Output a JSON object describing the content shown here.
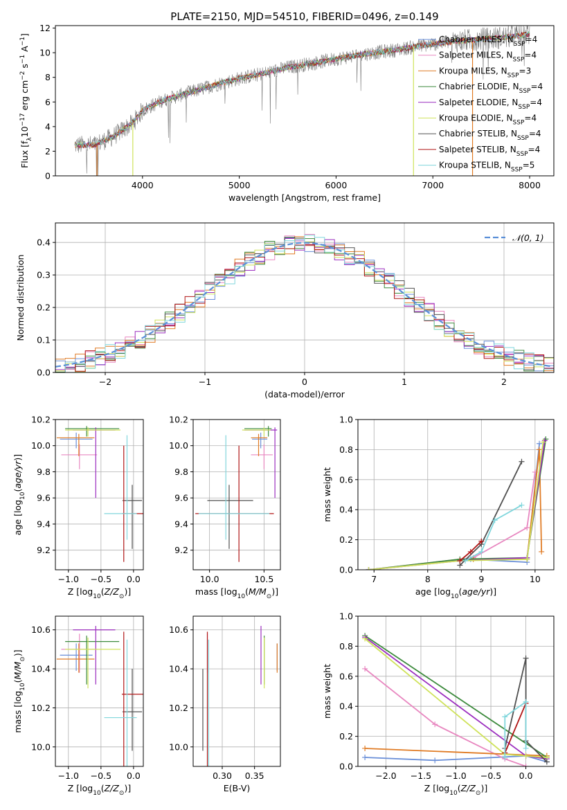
{
  "figure_title": "PLATE=2150, MJD=54510, FIBERID=0496, z=0.149",
  "colors": {
    "Chabrier MILES": "#6a8fd8",
    "Salpeter MILES": "#e887c0",
    "Kroupa MILES": "#e07b24",
    "Chabrier ELODIE": "#3c8a3c",
    "Salpeter ELODIE": "#9b2dbf",
    "Kroupa ELODIE": "#cfe25a",
    "Chabrier STELIB": "#505050",
    "Salpeter STELIB": "#b01515",
    "Kroupa STELIB": "#7fd6dc",
    "data": "#7a7a7a",
    "gaussian": "#5a8fd8"
  },
  "chart_data": [
    {
      "id": "spectrum",
      "type": "line",
      "title": "PLATE=2150, MJD=54510, FIBERID=0496, z=0.149",
      "xlabel": "wavelength [Angstrom, rest frame]",
      "ylabel": "Flux [f_λ 10^-17 erg cm^-2 s^-1 A^-1]",
      "xlim": [
        3100,
        8250
      ],
      "ylim": [
        0,
        12.2
      ],
      "xticks": [
        4000,
        5000,
        6000,
        7000,
        8000
      ],
      "yticks": [
        0,
        2,
        4,
        6,
        8,
        10,
        12
      ],
      "grid": false,
      "legend_position": "top-right",
      "legend": [
        {
          "label": "Chabrier MILES, N",
          "sub": "SSP",
          "tail": "=4",
          "key": "Chabrier MILES"
        },
        {
          "label": "Salpeter MILES, N",
          "sub": "SSP",
          "tail": "=4",
          "key": "Salpeter MILES"
        },
        {
          "label": "Kroupa MILES, N",
          "sub": "SSP",
          "tail": "=3",
          "key": "Kroupa MILES"
        },
        {
          "label": "Chabrier ELODIE, N",
          "sub": "SSP",
          "tail": "=4",
          "key": "Chabrier ELODIE"
        },
        {
          "label": "Salpeter ELODIE, N",
          "sub": "SSP",
          "tail": "=4",
          "key": "Salpeter ELODIE"
        },
        {
          "label": "Kroupa ELODIE, N",
          "sub": "SSP",
          "tail": "=4",
          "key": "Kroupa ELODIE"
        },
        {
          "label": "Chabrier STELIB, N",
          "sub": "SSP",
          "tail": "=4",
          "key": "Chabrier STELIB"
        },
        {
          "label": "Salpeter STELIB, N",
          "sub": "SSP",
          "tail": "=4",
          "key": "Salpeter STELIB"
        },
        {
          "label": "Kroupa STELIB, N",
          "sub": "SSP",
          "tail": "=5",
          "key": "Kroupa STELIB"
        }
      ],
      "continuum": {
        "x": [
          3300,
          3500,
          3700,
          3900,
          4000,
          4200,
          4500,
          4800,
          5000,
          5300,
          5500,
          5800,
          6000,
          6300,
          6600,
          6900,
          7200,
          7500,
          7800,
          8000
        ],
        "y": [
          2.5,
          2.5,
          3.2,
          4.3,
          5.3,
          6.1,
          6.8,
          7.5,
          7.9,
          8.4,
          8.8,
          9.2,
          9.5,
          9.9,
          10.2,
          10.6,
          10.9,
          11.1,
          11.3,
          11.5
        ]
      },
      "model_drop_lines": [
        {
          "x": 3530,
          "key": "Kroupa MILES",
          "from": 2.5,
          "to": 0
        },
        {
          "x": 3900,
          "key": "Kroupa ELODIE",
          "from": 4.3,
          "to": 0
        },
        {
          "x": 6800,
          "key": "Kroupa ELODIE",
          "from": 10.5,
          "to": 0
        },
        {
          "x": 7410,
          "key": "Kroupa MILES",
          "from": 11.0,
          "to": 0
        }
      ]
    },
    {
      "id": "residuals",
      "type": "line",
      "xlabel": "(data-model)/error",
      "ylabel": "Normed distribution",
      "xlim": [
        -2.5,
        2.5
      ],
      "ylim": [
        0,
        0.46
      ],
      "xticks": [
        -2,
        -1,
        0,
        1,
        2
      ],
      "yticks": [
        0.0,
        0.1,
        0.2,
        0.3,
        0.4
      ],
      "grid": true,
      "legend_position": "top-right",
      "legend": [
        {
          "label": "𝒩(0, 1)",
          "key": "gaussian",
          "style": "dashed"
        }
      ],
      "bin_width": 0.1
    },
    {
      "id": "age-vs-Z",
      "type": "scatter",
      "xlabel": "Z [log10(Z/Z⊙)]",
      "ylabel": "age  [log10(age/yr)]",
      "xlim": [
        -1.2,
        0.15
      ],
      "ylim": [
        9.05,
        10.2
      ],
      "xticks": [
        -1.0,
        -0.5,
        0.0
      ],
      "yticks": [
        9.2,
        9.4,
        9.6,
        9.8,
        10.0,
        10.2
      ],
      "grid": true,
      "points": [
        {
          "key": "Chabrier MILES",
          "x": -0.88,
          "y": 10.05,
          "xerr": [
            0.25,
            0.25
          ],
          "yerr": [
            0.07,
            0.05
          ]
        },
        {
          "key": "Salpeter MILES",
          "x": -0.83,
          "y": 9.93,
          "xerr": [
            0.28,
            0.27
          ],
          "yerr": [
            0.11,
            0.08
          ]
        },
        {
          "key": "Kroupa MILES",
          "x": -0.84,
          "y": 10.06,
          "xerr": [
            0.34,
            0.24
          ],
          "yerr": [
            0.14,
            0.03
          ]
        },
        {
          "key": "Chabrier ELODIE",
          "x": -0.72,
          "y": 10.13,
          "xerr": [
            0.33,
            0.5
          ],
          "yerr": [
            0.06,
            0.02
          ]
        },
        {
          "key": "Salpeter ELODIE",
          "x": -0.58,
          "y": 10.12,
          "xerr": [
            0.35,
            0.3
          ],
          "yerr": [
            0.52,
            0.02
          ]
        },
        {
          "key": "Kroupa ELODIE",
          "x": -0.7,
          "y": 10.12,
          "xerr": [
            0.35,
            0.5
          ],
          "yerr": [
            0.05,
            0.02
          ]
        },
        {
          "key": "Chabrier STELIB",
          "x": -0.02,
          "y": 9.58,
          "xerr": [
            0.15,
            0.15
          ],
          "yerr": [
            0.37,
            0.12
          ]
        },
        {
          "key": "Salpeter STELIB",
          "x": -0.15,
          "y": 9.48,
          "xerr": [
            0.03,
            0.3
          ],
          "yerr": [
            0.37,
            0.52
          ]
        },
        {
          "key": "Kroupa STELIB",
          "x": -0.1,
          "y": 9.48,
          "xerr": [
            0.35,
            0.15
          ],
          "yerr": [
            0.2,
            0.6
          ]
        }
      ]
    },
    {
      "id": "age-vs-mass",
      "type": "scatter",
      "xlabel": "mass [log10(M/M⊙)]",
      "ylabel": "",
      "xlim": [
        9.85,
        10.65
      ],
      "ylim": [
        9.05,
        10.2
      ],
      "xticks": [
        10.0,
        10.5
      ],
      "yticks": [
        9.2,
        9.4,
        9.6,
        9.8,
        10.0,
        10.2
      ],
      "grid": true,
      "points": [
        {
          "key": "Chabrier MILES",
          "x": 10.47,
          "y": 10.05,
          "xerr": [
            0.08,
            0.06
          ],
          "yerr": [
            0.07,
            0.05
          ]
        },
        {
          "key": "Salpeter MILES",
          "x": 10.5,
          "y": 9.93,
          "xerr": [
            0.12,
            0.08
          ],
          "yerr": [
            0.11,
            0.08
          ]
        },
        {
          "key": "Kroupa MILES",
          "x": 10.45,
          "y": 10.06,
          "xerr": [
            0.07,
            0.08
          ],
          "yerr": [
            0.14,
            0.03
          ]
        },
        {
          "key": "Chabrier ELODIE",
          "x": 10.54,
          "y": 10.13,
          "xerr": [
            0.22,
            0.03
          ],
          "yerr": [
            0.06,
            0.02
          ]
        },
        {
          "key": "Salpeter ELODIE",
          "x": 10.6,
          "y": 10.12,
          "xerr": [
            0.28,
            0.02
          ],
          "yerr": [
            0.52,
            0.02
          ]
        },
        {
          "key": "Kroupa ELODIE",
          "x": 10.5,
          "y": 10.12,
          "xerr": [
            0.2,
            0.06
          ],
          "yerr": [
            0.05,
            0.02
          ]
        },
        {
          "key": "Chabrier STELIB",
          "x": 10.18,
          "y": 9.58,
          "xerr": [
            0.2,
            0.22
          ],
          "yerr": [
            0.37,
            0.12
          ]
        },
        {
          "key": "Salpeter STELIB",
          "x": 10.27,
          "y": 9.48,
          "xerr": [
            0.4,
            0.32
          ],
          "yerr": [
            0.37,
            0.52
          ]
        },
        {
          "key": "Kroupa STELIB",
          "x": 10.15,
          "y": 9.48,
          "xerr": [
            0.25,
            0.4
          ],
          "yerr": [
            0.2,
            0.6
          ]
        }
      ]
    },
    {
      "id": "weight-vs-age",
      "type": "line",
      "xlabel": "age  [log10(age/yr)]",
      "ylabel": "mass weight",
      "xlim": [
        6.7,
        10.35
      ],
      "ylim": [
        0,
        1.0
      ],
      "xticks": [
        7,
        8,
        9,
        10
      ],
      "yticks": [
        0.0,
        0.2,
        0.4,
        0.6,
        0.8,
        1.0
      ],
      "grid": true,
      "series": [
        {
          "key": "Chabrier MILES",
          "x": [
            6.9,
            8.8,
            9.85,
            10.08
          ],
          "y": [
            0.0,
            0.07,
            0.05,
            0.84
          ]
        },
        {
          "key": "Salpeter MILES",
          "x": [
            6.9,
            8.85,
            9.85,
            10.0
          ],
          "y": [
            0.0,
            0.08,
            0.28,
            0.65
          ]
        },
        {
          "key": "Kroupa MILES",
          "x": [
            8.85,
            9.85,
            10.08,
            10.12
          ],
          "y": [
            0.07,
            0.07,
            0.8,
            0.12
          ]
        },
        {
          "key": "Chabrier ELODIE",
          "x": [
            6.9,
            8.6,
            9.85,
            10.2
          ],
          "y": [
            0.0,
            0.07,
            0.08,
            0.87
          ]
        },
        {
          "key": "Salpeter ELODIE",
          "x": [
            6.9,
            8.6,
            9.85,
            10.18
          ],
          "y": [
            0.0,
            0.06,
            0.08,
            0.86
          ]
        },
        {
          "key": "Kroupa ELODIE",
          "x": [
            6.9,
            8.6,
            9.85,
            10.15
          ],
          "y": [
            0.0,
            0.06,
            0.07,
            0.85
          ]
        },
        {
          "key": "Chabrier STELIB",
          "x": [
            8.6,
            9.0,
            9.75
          ],
          "y": [
            0.03,
            0.17,
            0.72
          ]
        },
        {
          "key": "Salpeter STELIB",
          "x": [
            8.6,
            8.8,
            9.0
          ],
          "y": [
            0.06,
            0.12,
            0.19
          ]
        },
        {
          "key": "Kroupa STELIB",
          "x": [
            8.7,
            9.0,
            9.25,
            9.75
          ],
          "y": [
            0.06,
            0.12,
            0.33,
            0.43
          ]
        }
      ]
    },
    {
      "id": "mass-vs-Z",
      "type": "scatter",
      "xlabel": "Z [log10(Z/Z⊙)]",
      "ylabel": "mass [log10(M/M⊙)]",
      "xlim": [
        -1.2,
        0.15
      ],
      "ylim": [
        9.9,
        10.67
      ],
      "xticks": [
        -1.0,
        -0.5,
        0.0
      ],
      "yticks": [
        10.0,
        10.2,
        10.4,
        10.6
      ],
      "grid": true,
      "points": [
        {
          "key": "Chabrier MILES",
          "x": -0.88,
          "y": 10.47,
          "xerr": [
            0.25,
            0.25
          ],
          "yerr": [
            0.08,
            0.06
          ]
        },
        {
          "key": "Salpeter MILES",
          "x": -0.83,
          "y": 10.5,
          "xerr": [
            0.28,
            0.27
          ],
          "yerr": [
            0.12,
            0.08
          ]
        },
        {
          "key": "Kroupa MILES",
          "x": -0.84,
          "y": 10.45,
          "xerr": [
            0.34,
            0.24
          ],
          "yerr": [
            0.07,
            0.08
          ]
        },
        {
          "key": "Chabrier ELODIE",
          "x": -0.72,
          "y": 10.54,
          "xerr": [
            0.33,
            0.5
          ],
          "yerr": [
            0.22,
            0.03
          ]
        },
        {
          "key": "Salpeter ELODIE",
          "x": -0.58,
          "y": 10.6,
          "xerr": [
            0.35,
            0.3
          ],
          "yerr": [
            0.28,
            0.02
          ]
        },
        {
          "key": "Kroupa ELODIE",
          "x": -0.7,
          "y": 10.5,
          "xerr": [
            0.35,
            0.5
          ],
          "yerr": [
            0.2,
            0.06
          ]
        },
        {
          "key": "Chabrier STELIB",
          "x": -0.02,
          "y": 10.18,
          "xerr": [
            0.15,
            0.15
          ],
          "yerr": [
            0.2,
            0.22
          ]
        },
        {
          "key": "Salpeter STELIB",
          "x": -0.15,
          "y": 10.27,
          "xerr": [
            0.03,
            0.3
          ],
          "yerr": [
            0.4,
            0.32
          ]
        },
        {
          "key": "Kroupa STELIB",
          "x": -0.1,
          "y": 10.15,
          "xerr": [
            0.35,
            0.15
          ],
          "yerr": [
            0.25,
            0.4
          ]
        }
      ]
    },
    {
      "id": "mass-vs-EBV",
      "type": "scatter",
      "xlabel": "E(B-V)",
      "ylabel": "",
      "xlim": [
        0.255,
        0.39
      ],
      "ylim": [
        9.9,
        10.67
      ],
      "xticks": [
        0.3,
        0.35
      ],
      "yticks": [
        10.0,
        10.2,
        10.4,
        10.6
      ],
      "grid": true,
      "points": [
        {
          "key": "Chabrier MILES",
          "x": 0.385,
          "y": 10.47,
          "yerr": [
            0.08,
            0.06
          ]
        },
        {
          "key": "Salpeter MILES",
          "x": 0.277,
          "y": 10.5,
          "yerr": [
            0.12,
            0.08
          ]
        },
        {
          "key": "Kroupa MILES",
          "x": 0.385,
          "y": 10.45,
          "yerr": [
            0.07,
            0.08
          ]
        },
        {
          "key": "Chabrier ELODIE",
          "x": 0.365,
          "y": 10.54,
          "yerr": [
            0.22,
            0.03
          ]
        },
        {
          "key": "Salpeter ELODIE",
          "x": 0.36,
          "y": 10.6,
          "yerr": [
            0.28,
            0.02
          ]
        },
        {
          "key": "Kroupa ELODIE",
          "x": 0.365,
          "y": 10.5,
          "yerr": [
            0.2,
            0.06
          ]
        },
        {
          "key": "Chabrier STELIB",
          "x": 0.27,
          "y": 10.18,
          "yerr": [
            0.2,
            0.22
          ]
        },
        {
          "key": "Salpeter STELIB",
          "x": 0.277,
          "y": 10.27,
          "yerr": [
            0.4,
            0.32
          ]
        },
        {
          "key": "Kroupa STELIB",
          "x": 0.279,
          "y": 10.15,
          "yerr": [
            0.25,
            0.4
          ]
        }
      ]
    },
    {
      "id": "weight-vs-Z",
      "type": "line",
      "xlabel": "Z [log10(Z/Z⊙)]",
      "ylabel": "mass weight",
      "xlim": [
        -2.4,
        0.4
      ],
      "ylim": [
        0,
        1.0
      ],
      "xticks": [
        -2.0,
        -1.5,
        -1.0,
        -0.5,
        0.0
      ],
      "yticks": [
        0.0,
        0.2,
        0.4,
        0.6,
        0.8,
        1.0
      ],
      "grid": true,
      "series": [
        {
          "key": "Chabrier MILES",
          "x": [
            -2.3,
            -1.3,
            0.0,
            0.3
          ],
          "y": [
            0.06,
            0.04,
            0.07,
            0.03
          ]
        },
        {
          "key": "Salpeter MILES",
          "x": [
            -2.3,
            -1.3,
            -0.3,
            0.0
          ],
          "y": [
            0.65,
            0.28,
            0.05,
            0.0
          ]
        },
        {
          "key": "Kroupa MILES",
          "x": [
            -2.3,
            0.3,
            0.3
          ],
          "y": [
            0.12,
            0.07,
            0.07
          ]
        },
        {
          "key": "Chabrier ELODIE",
          "x": [
            -2.3,
            0.3
          ],
          "y": [
            0.87,
            0.06
          ]
        },
        {
          "key": "Salpeter ELODIE",
          "x": [
            -2.3,
            0.0,
            0.3
          ],
          "y": [
            0.86,
            0.07,
            0.05
          ]
        },
        {
          "key": "Kroupa ELODIE",
          "x": [
            -2.3,
            -0.3,
            0.0,
            0.3
          ],
          "y": [
            0.85,
            0.08,
            0.07,
            0.06
          ]
        },
        {
          "key": "Chabrier STELIB",
          "x": [
            -0.3,
            0.0,
            0.0,
            0.3
          ],
          "y": [
            0.12,
            0.72,
            0.17,
            0.03
          ]
        },
        {
          "key": "Salpeter STELIB",
          "x": [
            -0.3,
            0.0
          ],
          "y": [
            0.09,
            0.42
          ]
        },
        {
          "key": "Kroupa STELIB",
          "x": [
            -0.3,
            -0.3,
            0.0,
            0.0
          ],
          "y": [
            0.06,
            0.33,
            0.43,
            0.12
          ]
        }
      ]
    }
  ]
}
